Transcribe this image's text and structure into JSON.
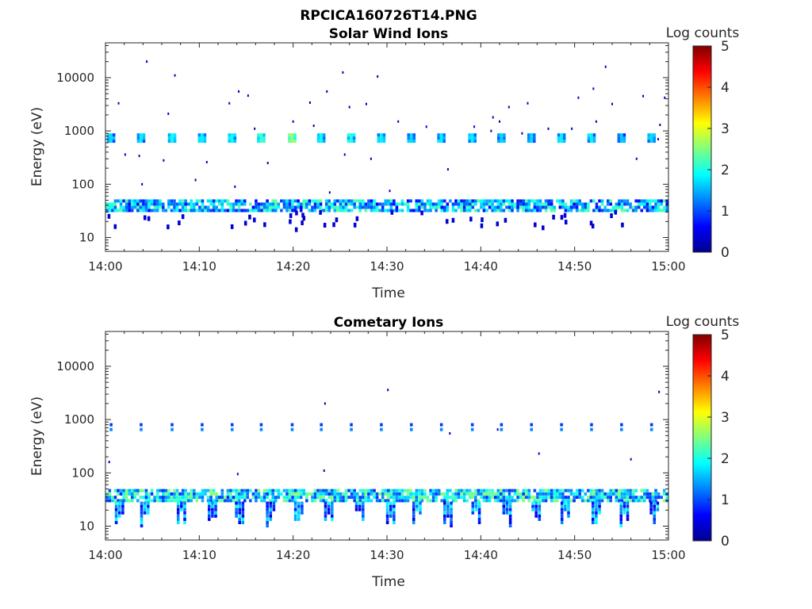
{
  "figure": {
    "filename": "RPCICA160726T14.PNG"
  },
  "palette": {
    "axis": "#262626",
    "background": "#ffffff"
  },
  "chart_data": [
    {
      "type": "heatmap",
      "title": "Solar Wind Ions",
      "xlabel": "Time",
      "ylabel": "Energy (eV)",
      "x_ticks": [
        "14:00",
        "14:10",
        "14:20",
        "14:30",
        "14:40",
        "14:50",
        "15:00"
      ],
      "x_range_minutes": [
        0,
        60
      ],
      "yscale": "log",
      "ylim": [
        5.5,
        45000
      ],
      "y_ticks": [
        10,
        100,
        1000,
        10000
      ],
      "y_tick_labels": [
        "10",
        "100",
        "1000",
        "10000"
      ],
      "colorbar": {
        "label": "Log counts",
        "range": [
          0,
          5
        ],
        "ticks": [
          "0",
          "1",
          "2",
          "3",
          "4",
          "5"
        ],
        "colormap": "jet"
      },
      "features": {
        "low_energy_band": {
          "energy_eV": [
            30,
            52
          ],
          "dominant_log_counts": 1.5
        },
        "low_energy_tail": {
          "energy_eV": [
            14,
            30
          ],
          "log_counts": 0.4
        },
        "solar_wind_bursts": {
          "energy_eV": [
            600,
            900
          ],
          "times_min": [
            0.6,
            3.8,
            7.1,
            10.3,
            13.5,
            16.6,
            19.9,
            23.0,
            26.2,
            29.4,
            32.6,
            35.8,
            39.1,
            42.2,
            45.4,
            48.6,
            51.8,
            55.0,
            58.2
          ],
          "log_counts": [
            1.7,
            1.8,
            1.9,
            1.8,
            1.9,
            2.2,
            2.6,
            1.9,
            2.0,
            1.8,
            1.7,
            1.8,
            1.8,
            1.7,
            1.7,
            1.8,
            1.8,
            1.6,
            1.7
          ]
        },
        "sparse_points": [
          [
            4.4,
            20000
          ],
          [
            7.4,
            11000
          ],
          [
            1.4,
            3300
          ],
          [
            6.7,
            2100
          ],
          [
            13.2,
            3300
          ],
          [
            14.2,
            5500
          ],
          [
            15.2,
            4600
          ],
          [
            21.8,
            3400
          ],
          [
            23.6,
            5500
          ],
          [
            25.3,
            12500
          ],
          [
            29.0,
            10500
          ],
          [
            26.0,
            2800
          ],
          [
            27.8,
            3200
          ],
          [
            41.3,
            1800
          ],
          [
            43.0,
            2800
          ],
          [
            45.0,
            3300
          ],
          [
            50.4,
            4200
          ],
          [
            52.0,
            6200
          ],
          [
            53.3,
            16000
          ],
          [
            54.0,
            3200
          ],
          [
            57.3,
            4500
          ],
          [
            59.6,
            4200
          ],
          [
            2.1,
            360
          ],
          [
            3.6,
            340
          ],
          [
            6.2,
            280
          ],
          [
            10.8,
            260
          ],
          [
            15.9,
            1100
          ],
          [
            17.3,
            250
          ],
          [
            20.0,
            1500
          ],
          [
            22.2,
            1250
          ],
          [
            25.5,
            360
          ],
          [
            28.3,
            300
          ],
          [
            31.2,
            1500
          ],
          [
            34.2,
            1200
          ],
          [
            36.5,
            190
          ],
          [
            39.3,
            1200
          ],
          [
            42.0,
            1500
          ],
          [
            47.2,
            1100
          ],
          [
            52.3,
            1500
          ],
          [
            56.6,
            300
          ],
          [
            59.1,
            1300
          ],
          [
            3.9,
            100
          ],
          [
            9.6,
            120
          ],
          [
            13.8,
            90
          ],
          [
            23.9,
            70
          ],
          [
            30.3,
            75
          ],
          [
            41.1,
            1000
          ],
          [
            44.4,
            900
          ],
          [
            49.7,
            1100
          ],
          [
            58.9,
            700
          ]
        ]
      }
    },
    {
      "type": "heatmap",
      "title": "Cometary Ions",
      "xlabel": "Time",
      "ylabel": "Energy (eV)",
      "x_ticks": [
        "14:00",
        "14:10",
        "14:20",
        "14:30",
        "14:40",
        "14:50",
        "15:00"
      ],
      "x_range_minutes": [
        0,
        60
      ],
      "yscale": "log",
      "ylim": [
        5.5,
        45000
      ],
      "y_ticks": [
        10,
        100,
        1000,
        10000
      ],
      "y_tick_labels": [
        "10",
        "100",
        "1000",
        "10000"
      ],
      "colorbar": {
        "label": "Log counts",
        "range": [
          0,
          5
        ],
        "ticks": [
          "0",
          "1",
          "2",
          "3",
          "4",
          "5"
        ],
        "colormap": "jet"
      },
      "features": {
        "low_energy_band": {
          "energy_eV": [
            28,
            50
          ],
          "dominant_log_counts": 1.7
        },
        "spike_times_min": [
          1.5,
          4.2,
          8.1,
          11.4,
          14.3,
          17.6,
          20.6,
          23.8,
          27.1,
          30.4,
          33.2,
          36.5,
          39.5,
          42.8,
          45.9,
          49.0,
          52.3,
          55.3,
          58.5
        ],
        "spike_floor_eV": 9,
        "periodic_blips": {
          "energy_eV": [
            650,
            800
          ],
          "times_min": [
            0.6,
            3.8,
            7.1,
            10.3,
            13.5,
            16.6,
            19.9,
            23.0,
            26.2,
            29.4,
            32.6,
            35.8,
            39.1,
            42.2,
            45.4,
            48.6,
            51.8,
            55.0,
            58.2
          ],
          "log_counts": 1.3
        },
        "sparse_points": [
          [
            0.4,
            160
          ],
          [
            14.1,
            95
          ],
          [
            23.4,
            2000
          ],
          [
            30.1,
            3600
          ],
          [
            23.3,
            110
          ],
          [
            36.7,
            550
          ],
          [
            46.2,
            230
          ],
          [
            56.0,
            180
          ],
          [
            59.0,
            3300
          ],
          [
            41.8,
            650
          ]
        ]
      }
    }
  ]
}
